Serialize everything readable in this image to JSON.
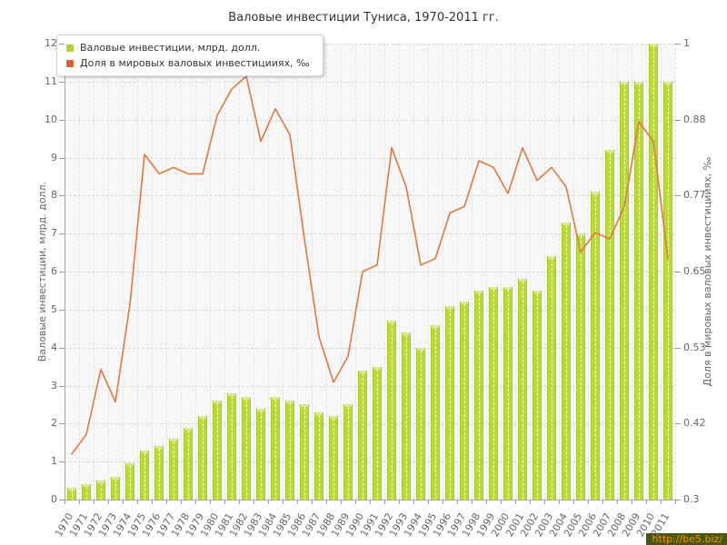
{
  "title": "Валовые инвестиции Туниса, 1970-2011 гг.",
  "legend": {
    "items": [
      {
        "label": "Валовые инвестиции, млрд. долл.",
        "color": "#b2d233"
      },
      {
        "label": "Доля в мировых валовых инвестицииях, ‰",
        "color": "#e2602c"
      }
    ]
  },
  "watermark": {
    "text": "http://be5.biz/"
  },
  "chart_data": {
    "type": "bar",
    "title": "Валовые инвестиции Туниса, 1970-2011 гг.",
    "categories": [
      "1970",
      "1971",
      "1972",
      "1973",
      "1974",
      "1975",
      "1976",
      "1977",
      "1978",
      "1979",
      "1980",
      "1981",
      "1982",
      "1983",
      "1984",
      "1985",
      "1986",
      "1987",
      "1988",
      "1989",
      "1990",
      "1991",
      "1992",
      "1993",
      "1994",
      "1995",
      "1996",
      "1997",
      "1998",
      "1999",
      "2000",
      "2001",
      "2002",
      "2003",
      "2004",
      "2005",
      "2006",
      "2007",
      "2008",
      "2009",
      "2010",
      "2011"
    ],
    "series": [
      {
        "name": "Валовые инвестиции, млрд. долл.",
        "type": "bar",
        "axis": "left",
        "color": "#bcd841",
        "values": [
          0.3,
          0.4,
          0.5,
          0.6,
          0.95,
          1.3,
          1.4,
          1.6,
          1.9,
          2.2,
          2.6,
          2.8,
          2.7,
          2.4,
          2.7,
          2.6,
          2.5,
          2.3,
          2.2,
          2.5,
          3.4,
          3.5,
          4.7,
          4.4,
          4.0,
          4.6,
          5.1,
          5.2,
          5.5,
          5.6,
          5.6,
          5.8,
          5.5,
          6.4,
          7.3,
          7.0,
          8.1,
          9.2,
          11.0,
          11.0,
          12.0,
          11.0
        ]
      },
      {
        "name": "Доля в мировых валовых инвестицииях, ‰",
        "type": "line",
        "axis": "right",
        "color": "#e0793b",
        "values": [
          0.37,
          0.4,
          0.5,
          0.45,
          0.6,
          0.83,
          0.8,
          0.81,
          0.8,
          0.8,
          0.89,
          0.93,
          0.95,
          0.85,
          0.9,
          0.86,
          0.7,
          0.55,
          0.48,
          0.52,
          0.65,
          0.66,
          0.84,
          0.78,
          0.66,
          0.67,
          0.74,
          0.75,
          0.82,
          0.81,
          0.77,
          0.84,
          0.79,
          0.81,
          0.78,
          0.68,
          0.71,
          0.7,
          0.75,
          0.88,
          0.85,
          0.67
        ]
      }
    ],
    "ylabel_left": "Валовые инвестиции, млрд. долл.",
    "ylabel_right": "Доля в мировых валовых инвестицииях, ‰",
    "ylim_left": [
      0,
      12
    ],
    "ylim_right": [
      0.3,
      1.0
    ],
    "left_ticks": [
      "0",
      "1",
      "2",
      "3",
      "4",
      "5",
      "6",
      "7",
      "8",
      "9",
      "10",
      "11",
      "12"
    ],
    "right_ticks_top_down": [
      "1",
      "0.88",
      "0.77",
      "0.65",
      "0.53",
      "0.42",
      "0.3"
    ],
    "grid": true,
    "legend_position": "top-left"
  }
}
